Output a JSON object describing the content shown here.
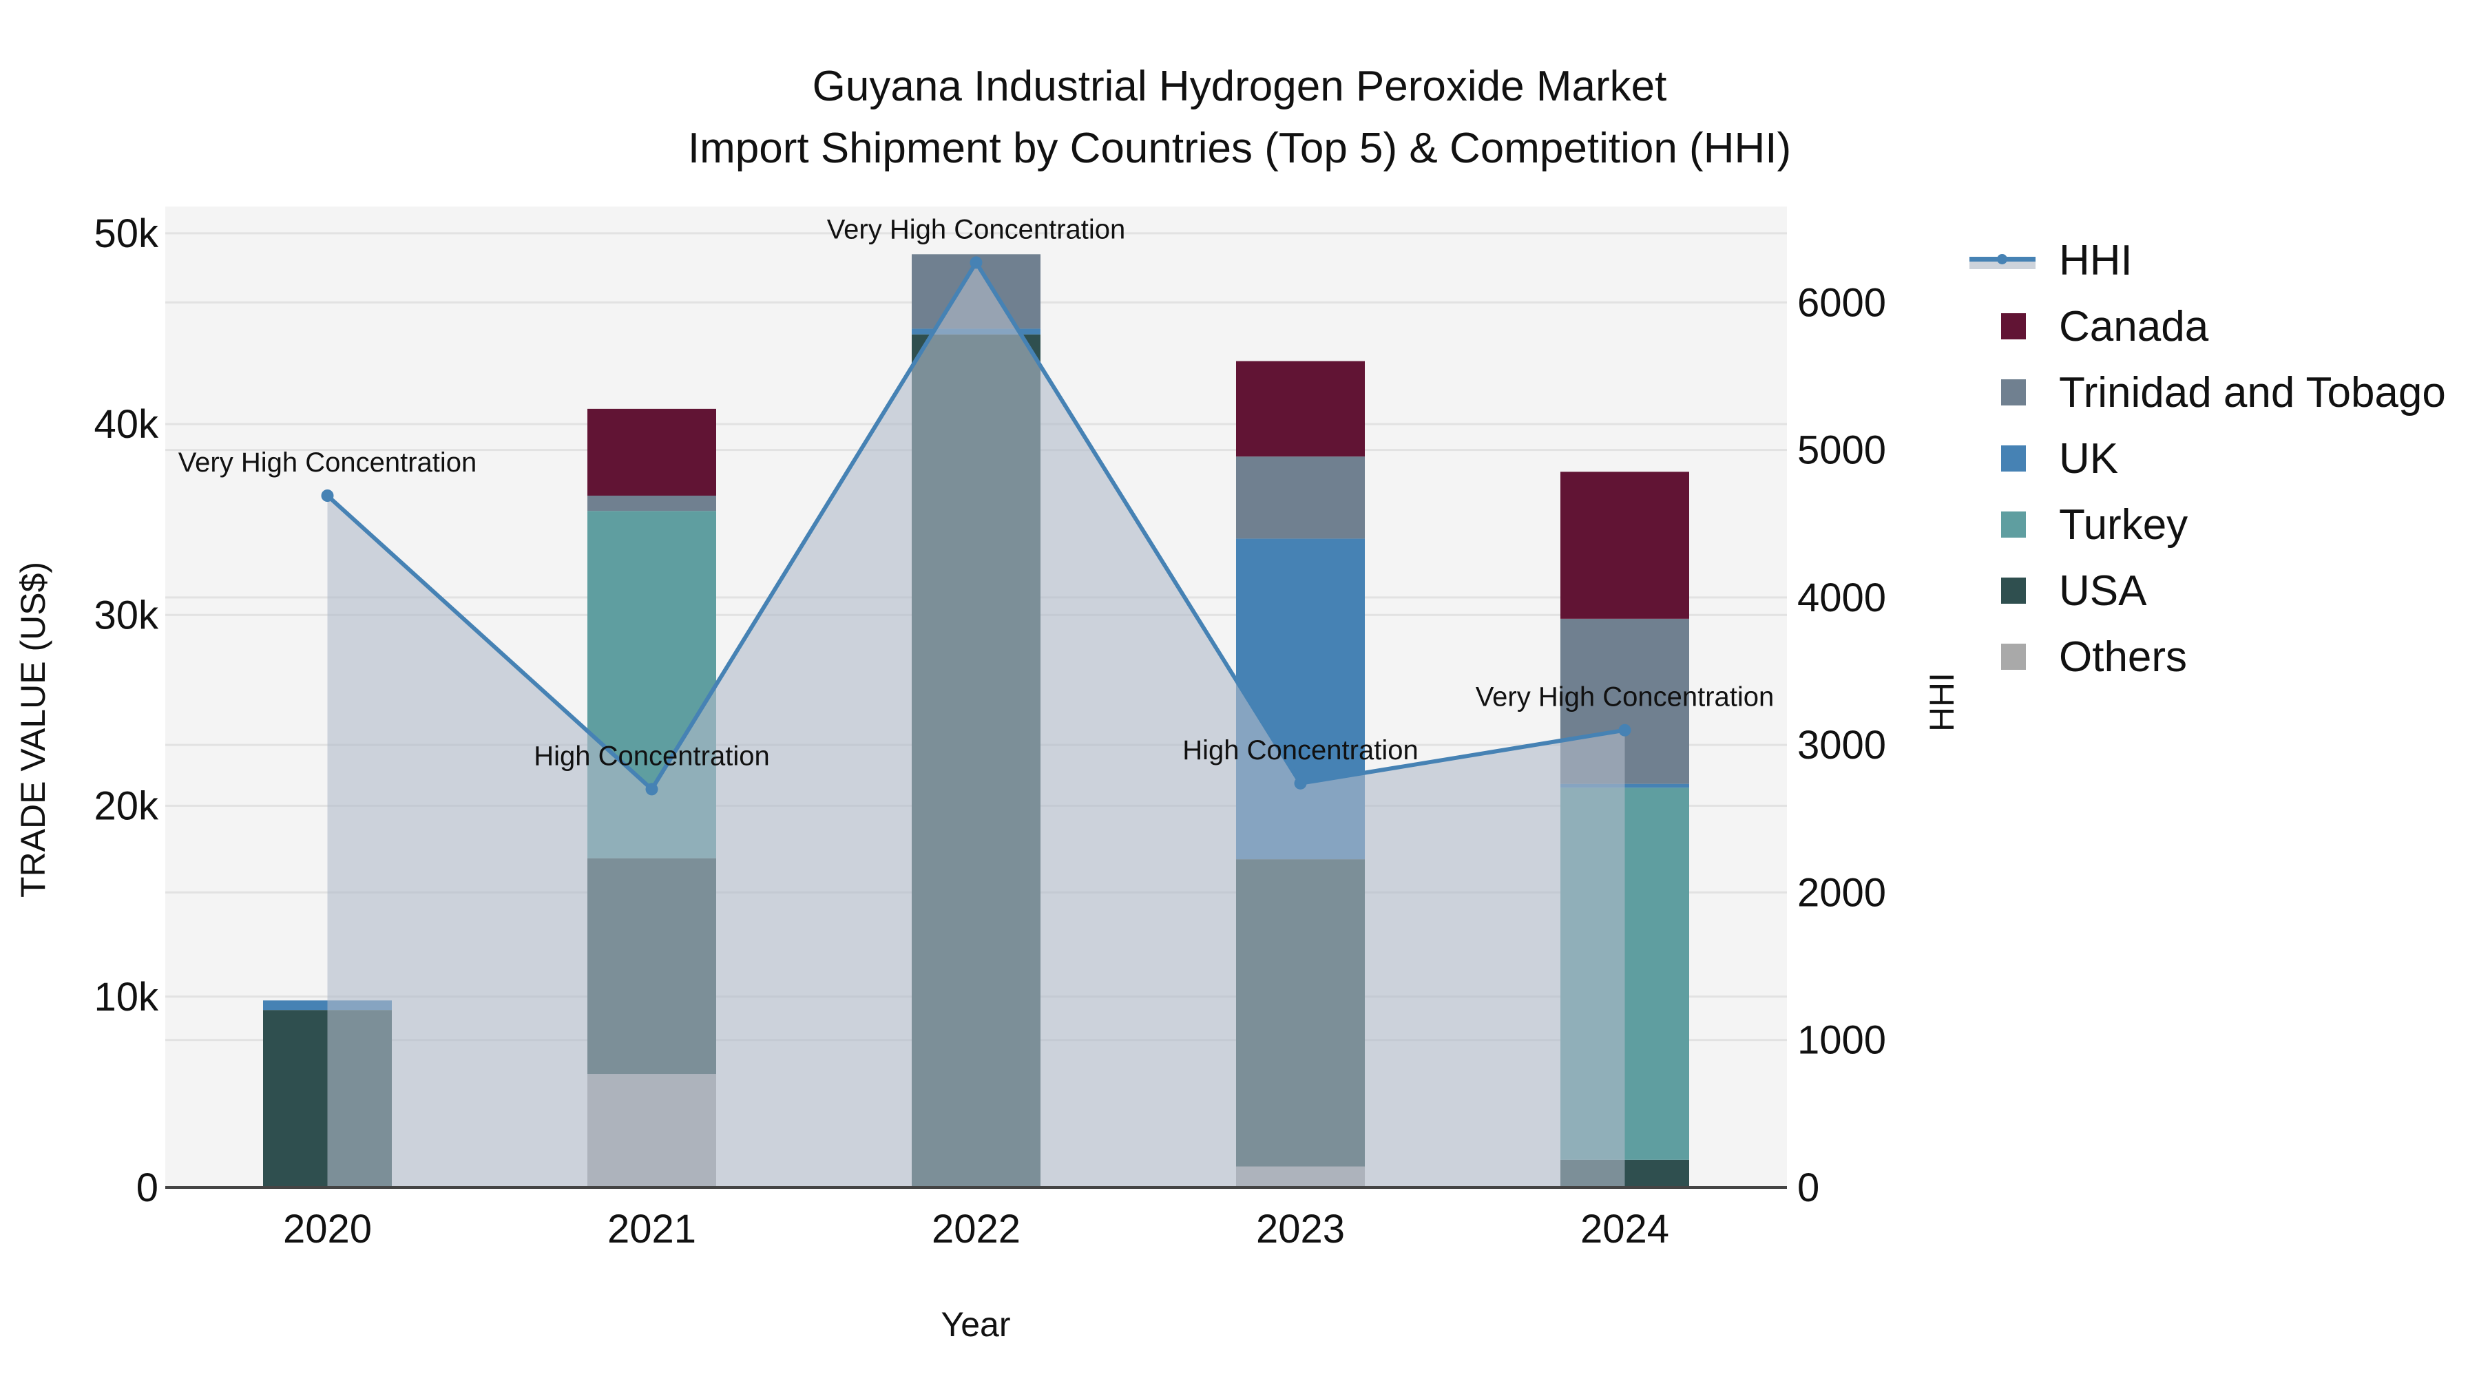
{
  "title": {
    "line1": "Guyana Industrial Hydrogen Peroxide Market",
    "line2": "Import Shipment by Countries (Top 5) & Competition (HHI)"
  },
  "axes": {
    "x_title": "Year",
    "y_title": "TRADE VALUE (US$)",
    "y2_title": "HHI",
    "y_ticks": [
      "0",
      "10k",
      "20k",
      "30k",
      "40k",
      "50k"
    ],
    "y2_ticks": [
      "0",
      "1000",
      "2000",
      "3000",
      "4000",
      "5000",
      "6000"
    ],
    "x_ticks": [
      "2020",
      "2021",
      "2022",
      "2023",
      "2024"
    ]
  },
  "legend": {
    "items": [
      {
        "label": "HHI",
        "type": "line",
        "color": "#4682b4"
      },
      {
        "label": "Canada",
        "type": "bar",
        "color": "#611434"
      },
      {
        "label": "Trinidad and Tobago",
        "type": "bar",
        "color": "#708090"
      },
      {
        "label": "UK",
        "type": "bar",
        "color": "#4682b4"
      },
      {
        "label": "Turkey",
        "type": "bar",
        "color": "#5f9ea0"
      },
      {
        "label": "USA",
        "type": "bar",
        "color": "#2f4f4f"
      },
      {
        "label": "Others",
        "type": "bar",
        "color": "#a9a9a9"
      }
    ]
  },
  "colors": {
    "plot_bg": "#f4f4f4",
    "grid": "#e2e2e2",
    "hhi_line": "#4682b4",
    "hhi_fill": "rgba(176,186,201,0.6)"
  },
  "chart_data": {
    "type": "bar",
    "title": "Guyana Industrial Hydrogen Peroxide Market — Import Shipment by Countries (Top 5) & Competition (HHI)",
    "xlabel": "Year",
    "ylabel": "TRADE VALUE (US$)",
    "y2label": "HHI",
    "ylim": [
      0,
      51400
    ],
    "y2lim": [
      0,
      6650
    ],
    "barmode": "stack",
    "legend_position": "right",
    "grid": true,
    "categories": [
      "2020",
      "2021",
      "2022",
      "2023",
      "2024"
    ],
    "series": [
      {
        "name": "Others",
        "color": "#a9a9a9",
        "values": [
          0,
          5950,
          0,
          1100,
          0
        ]
      },
      {
        "name": "USA",
        "color": "#2f4f4f",
        "values": [
          9300,
          11300,
          44700,
          16100,
          1450
        ]
      },
      {
        "name": "Turkey",
        "color": "#5f9ea0",
        "values": [
          0,
          18200,
          0,
          0,
          19500
        ]
      },
      {
        "name": "UK",
        "color": "#4682b4",
        "values": [
          500,
          0,
          300,
          16800,
          200
        ]
      },
      {
        "name": "Trinidad and Tobago",
        "color": "#708090",
        "values": [
          0,
          800,
          3900,
          4300,
          8650
        ]
      },
      {
        "name": "Canada",
        "color": "#611434",
        "values": [
          0,
          4550,
          0,
          5000,
          7700
        ]
      }
    ],
    "hhi": {
      "name": "HHI",
      "type": "line+area",
      "axis": "right",
      "values": [
        4690,
        2700,
        6270,
        2740,
        3100
      ],
      "annotations": [
        "Very High Concentration",
        "High Concentration",
        "Very High Concentration",
        "High Concentration",
        "Very High Concentration"
      ]
    }
  }
}
